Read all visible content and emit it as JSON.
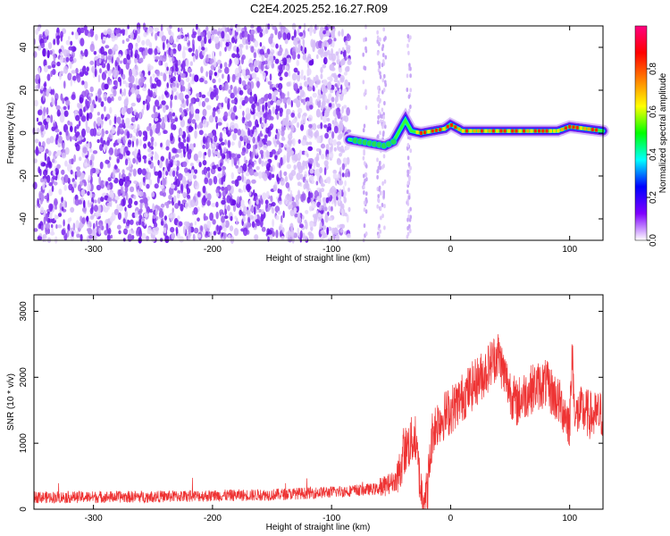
{
  "title": "C2E4.2025.252.16.27.R09",
  "chart_data": [
    {
      "type": "heatmap",
      "xlabel": "Height of straight line (km)",
      "ylabel": "Frequency (Hz)",
      "xlim": [
        -350,
        128
      ],
      "ylim": [
        -50,
        50
      ],
      "x_ticks": [
        -300,
        -200,
        -100,
        0,
        100
      ],
      "y_ticks": [
        -40,
        -20,
        0,
        20,
        40
      ],
      "noise_region_x": [
        -350,
        -85
      ],
      "signal_track": [
        {
          "x": -85,
          "y": -3
        },
        {
          "x": -75,
          "y": -4
        },
        {
          "x": -65,
          "y": -5
        },
        {
          "x": -55,
          "y": -6
        },
        {
          "x": -48,
          "y": -4
        },
        {
          "x": -42,
          "y": 2
        },
        {
          "x": -38,
          "y": 6
        },
        {
          "x": -33,
          "y": 1
        },
        {
          "x": -25,
          "y": 0
        },
        {
          "x": -15,
          "y": 1
        },
        {
          "x": -5,
          "y": 2
        },
        {
          "x": 0,
          "y": 4
        },
        {
          "x": 10,
          "y": 1
        },
        {
          "x": 30,
          "y": 1
        },
        {
          "x": 60,
          "y": 1
        },
        {
          "x": 90,
          "y": 1
        },
        {
          "x": 100,
          "y": 3
        },
        {
          "x": 128,
          "y": 1
        }
      ],
      "colorbar": {
        "label": "Normalized spectral amplitude",
        "range": [
          0,
          1
        ],
        "ticks": [
          "0.0",
          "0.2",
          "0.4",
          "0.6",
          "0.8"
        ],
        "colors": [
          "#ffffff",
          "#7f00ff",
          "#0000ff",
          "#00ffff",
          "#00ff00",
          "#ffff00",
          "#ff8000",
          "#ff0000",
          "#ff0080"
        ]
      }
    },
    {
      "type": "line",
      "xlabel": "Height of straight line (km)",
      "ylabel": "SNR (10 * v/v)",
      "xlim": [
        -350,
        128
      ],
      "ylim": [
        0,
        3250
      ],
      "x_ticks": [
        -300,
        -200,
        -100,
        0,
        100
      ],
      "y_ticks": [
        0,
        1000,
        2000,
        3000
      ],
      "color": "#ee3333",
      "series": [
        {
          "x": [
            -350,
            -250,
            -150,
            -100,
            -60,
            -45,
            -38,
            -30,
            -25,
            -20,
            -15,
            -10,
            0,
            10,
            20,
            30,
            35,
            40,
            45,
            50,
            55,
            60,
            70,
            80,
            90,
            95,
            100,
            102,
            105,
            110,
            120,
            128
          ],
          "y": [
            180,
            190,
            220,
            260,
            310,
            450,
            900,
            1100,
            300,
            200,
            1200,
            1350,
            1500,
            1700,
            1900,
            2100,
            2250,
            2350,
            2050,
            1800,
            1600,
            1700,
            1850,
            1900,
            1650,
            1500,
            1300,
            2300,
            1400,
            1500,
            1400,
            1450
          ]
        }
      ]
    }
  ]
}
